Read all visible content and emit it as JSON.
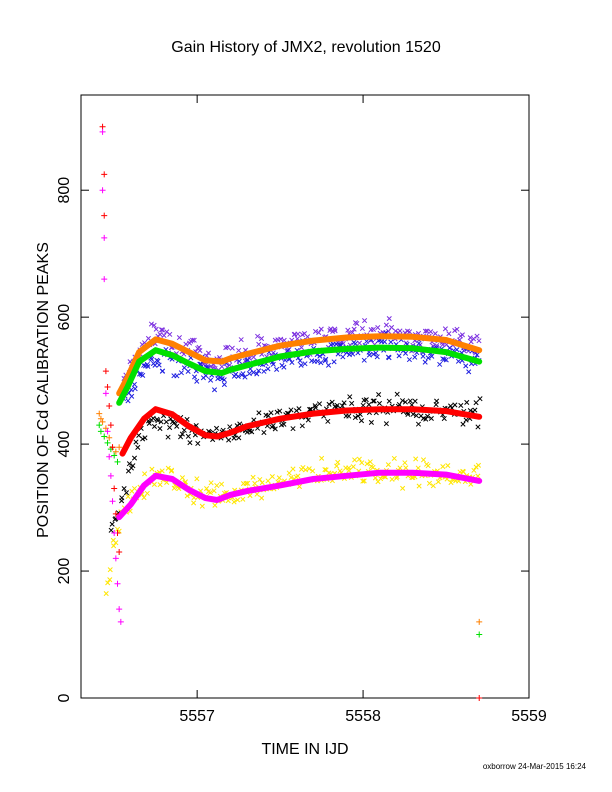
{
  "chart_data": {
    "type": "scatter",
    "title": "Gain History of JMX2, revolution 1520",
    "xlabel": "TIME IN IJD",
    "ylabel": "POSITION OF Cd CALIBRATION PEAKS",
    "xlim": [
      5556.3,
      5559.0
    ],
    "ylim": [
      0,
      950
    ],
    "x_ticks": [
      5557,
      5558,
      5559
    ],
    "y_ticks": [
      0,
      200,
      400,
      600,
      800
    ],
    "grid": false,
    "legend": "none",
    "footer": "oxborrow 24-Mar-2015 16:24",
    "series": [
      {
        "color": "#7b2fe0",
        "marker": "x",
        "kind": "noisy",
        "points": [
          [
            5556.55,
            500
          ],
          [
            5556.65,
            545
          ],
          [
            5556.75,
            575
          ],
          [
            5556.85,
            565
          ],
          [
            5556.95,
            548
          ],
          [
            5557.1,
            532
          ],
          [
            5557.2,
            538
          ],
          [
            5557.3,
            545
          ],
          [
            5557.5,
            560
          ],
          [
            5557.7,
            568
          ],
          [
            5557.9,
            572
          ],
          [
            5558.0,
            575
          ],
          [
            5558.1,
            580
          ],
          [
            5558.3,
            570
          ],
          [
            5558.5,
            565
          ],
          [
            5558.7,
            555
          ]
        ]
      },
      {
        "color": "#1f1fe0",
        "marker": "x",
        "kind": "noisy",
        "points": [
          [
            5556.55,
            465
          ],
          [
            5556.65,
            510
          ],
          [
            5556.75,
            535
          ],
          [
            5556.85,
            532
          ],
          [
            5556.95,
            520
          ],
          [
            5557.1,
            510
          ],
          [
            5557.2,
            515
          ],
          [
            5557.3,
            522
          ],
          [
            5557.5,
            535
          ],
          [
            5557.7,
            543
          ],
          [
            5557.9,
            548
          ],
          [
            5558.1,
            553
          ],
          [
            5558.3,
            548
          ],
          [
            5558.5,
            545
          ],
          [
            5558.7,
            535
          ]
        ]
      },
      {
        "color": "#000000",
        "marker": "x",
        "kind": "noisy",
        "points": [
          [
            5556.48,
            270
          ],
          [
            5556.55,
            320
          ],
          [
            5556.65,
            410
          ],
          [
            5556.75,
            440
          ],
          [
            5556.85,
            430
          ],
          [
            5556.95,
            420
          ],
          [
            5557.1,
            408
          ],
          [
            5557.2,
            415
          ],
          [
            5557.3,
            425
          ],
          [
            5557.5,
            440
          ],
          [
            5557.7,
            450
          ],
          [
            5557.9,
            455
          ],
          [
            5558.1,
            458
          ],
          [
            5558.3,
            455
          ],
          [
            5558.5,
            450
          ],
          [
            5558.7,
            445
          ]
        ]
      },
      {
        "color": "#ffe600",
        "marker": "x",
        "kind": "noisy",
        "points": [
          [
            5556.45,
            150
          ],
          [
            5556.5,
            250
          ],
          [
            5556.55,
            290
          ],
          [
            5556.65,
            330
          ],
          [
            5556.75,
            355
          ],
          [
            5556.85,
            345
          ],
          [
            5556.95,
            330
          ],
          [
            5557.1,
            315
          ],
          [
            5557.2,
            320
          ],
          [
            5557.3,
            328
          ],
          [
            5557.5,
            340
          ],
          [
            5557.7,
            350
          ],
          [
            5557.9,
            355
          ],
          [
            5558.1,
            358
          ],
          [
            5558.3,
            355
          ],
          [
            5558.5,
            352
          ],
          [
            5558.7,
            345
          ]
        ]
      },
      {
        "color": "#ff8000",
        "marker": "line",
        "kind": "thick",
        "points": [
          [
            5556.53,
            480
          ],
          [
            5556.58,
            505
          ],
          [
            5556.65,
            545
          ],
          [
            5556.75,
            565
          ],
          [
            5556.85,
            558
          ],
          [
            5556.95,
            545
          ],
          [
            5557.05,
            532
          ],
          [
            5557.15,
            530
          ],
          [
            5557.2,
            535
          ],
          [
            5557.3,
            542
          ],
          [
            5557.5,
            555
          ],
          [
            5557.7,
            563
          ],
          [
            5557.9,
            568
          ],
          [
            5558.1,
            570
          ],
          [
            5558.3,
            569
          ],
          [
            5558.5,
            564
          ],
          [
            5558.7,
            548
          ]
        ]
      },
      {
        "color": "#00e000",
        "marker": "line",
        "kind": "thick",
        "points": [
          [
            5556.53,
            465
          ],
          [
            5556.58,
            490
          ],
          [
            5556.65,
            530
          ],
          [
            5556.75,
            548
          ],
          [
            5556.85,
            540
          ],
          [
            5556.95,
            527
          ],
          [
            5557.05,
            515
          ],
          [
            5557.15,
            512
          ],
          [
            5557.2,
            517
          ],
          [
            5557.3,
            524
          ],
          [
            5557.5,
            538
          ],
          [
            5557.7,
            546
          ],
          [
            5557.9,
            550
          ],
          [
            5558.1,
            552
          ],
          [
            5558.3,
            551
          ],
          [
            5558.5,
            545
          ],
          [
            5558.7,
            530
          ]
        ]
      },
      {
        "color": "#ff0000",
        "marker": "line",
        "kind": "thick",
        "points": [
          [
            5556.55,
            385
          ],
          [
            5556.6,
            410
          ],
          [
            5556.68,
            440
          ],
          [
            5556.75,
            455
          ],
          [
            5556.85,
            447
          ],
          [
            5556.95,
            428
          ],
          [
            5557.05,
            414
          ],
          [
            5557.12,
            412
          ],
          [
            5557.2,
            418
          ],
          [
            5557.3,
            428
          ],
          [
            5557.5,
            440
          ],
          [
            5557.7,
            448
          ],
          [
            5557.9,
            453
          ],
          [
            5558.1,
            455
          ],
          [
            5558.3,
            455
          ],
          [
            5558.5,
            452
          ],
          [
            5558.7,
            443
          ]
        ]
      },
      {
        "color": "#ff00ff",
        "marker": "line",
        "kind": "thick",
        "points": [
          [
            5556.53,
            285
          ],
          [
            5556.6,
            305
          ],
          [
            5556.68,
            335
          ],
          [
            5556.75,
            350
          ],
          [
            5556.85,
            345
          ],
          [
            5556.95,
            328
          ],
          [
            5557.05,
            315
          ],
          [
            5557.12,
            312
          ],
          [
            5557.2,
            320
          ],
          [
            5557.3,
            326
          ],
          [
            5557.5,
            335
          ],
          [
            5557.7,
            345
          ],
          [
            5557.9,
            350
          ],
          [
            5558.1,
            355
          ],
          [
            5558.3,
            355
          ],
          [
            5558.5,
            352
          ],
          [
            5558.7,
            342
          ]
        ]
      },
      {
        "color": "#ff8000",
        "marker": "+",
        "kind": "points",
        "points": [
          [
            5556.41,
            448
          ],
          [
            5556.42,
            440
          ],
          [
            5556.43,
            435
          ],
          [
            5556.45,
            425
          ],
          [
            5556.47,
            410
          ],
          [
            5556.49,
            395
          ],
          [
            5556.51,
            388
          ],
          [
            5556.53,
            395
          ],
          [
            5558.7,
            120
          ]
        ]
      },
      {
        "color": "#00e000",
        "marker": "+",
        "kind": "points",
        "points": [
          [
            5556.41,
            430
          ],
          [
            5556.42,
            420
          ],
          [
            5556.44,
            412
          ],
          [
            5556.46,
            402
          ],
          [
            5556.48,
            392
          ],
          [
            5556.5,
            382
          ],
          [
            5556.52,
            372
          ],
          [
            5558.7,
            100
          ]
        ]
      },
      {
        "color": "#ff0000",
        "marker": "+",
        "kind": "points",
        "points": [
          [
            5556.43,
            900
          ],
          [
            5556.44,
            825
          ],
          [
            5556.44,
            760
          ],
          [
            5556.45,
            515
          ],
          [
            5556.46,
            490
          ],
          [
            5556.47,
            460
          ],
          [
            5556.48,
            430
          ],
          [
            5556.49,
            395
          ],
          [
            5556.5,
            330
          ],
          [
            5556.51,
            290
          ],
          [
            5556.52,
            260
          ],
          [
            5556.53,
            230
          ],
          [
            5558.7,
            0
          ]
        ]
      },
      {
        "color": "#ff00ff",
        "marker": "+",
        "kind": "points",
        "points": [
          [
            5556.43,
            892
          ],
          [
            5556.43,
            800
          ],
          [
            5556.44,
            725
          ],
          [
            5556.44,
            660
          ],
          [
            5556.45,
            480
          ],
          [
            5556.46,
            420
          ],
          [
            5556.47,
            380
          ],
          [
            5556.48,
            350
          ],
          [
            5556.49,
            310
          ],
          [
            5556.5,
            260
          ],
          [
            5556.51,
            220
          ],
          [
            5556.52,
            180
          ],
          [
            5556.53,
            140
          ],
          [
            5556.54,
            120
          ]
        ]
      }
    ]
  }
}
